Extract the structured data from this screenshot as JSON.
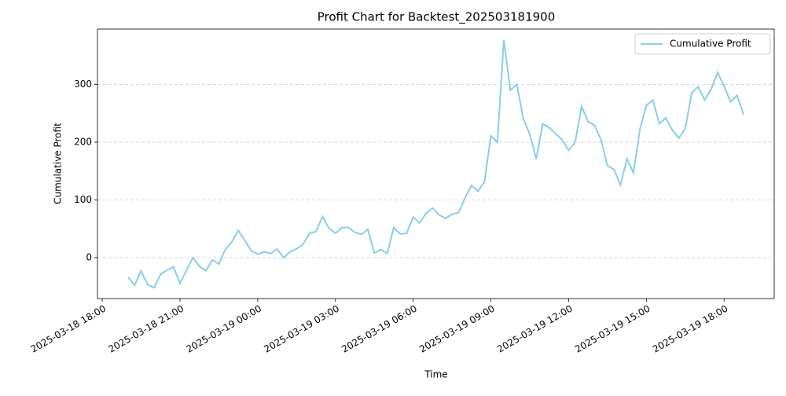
{
  "chart_data": {
    "type": "line",
    "title": "Profit Chart for Backtest_202503181900",
    "x_label": "Time",
    "y_label": "Cumulative Profit",
    "x": [
      "2025-03-18 19:00",
      "2025-03-18 19:15",
      "2025-03-18 19:30",
      "2025-03-18 19:45",
      "2025-03-18 20:00",
      "2025-03-18 20:15",
      "2025-03-18 20:30",
      "2025-03-18 20:45",
      "2025-03-18 21:00",
      "2025-03-18 21:15",
      "2025-03-18 21:30",
      "2025-03-18 21:45",
      "2025-03-18 22:00",
      "2025-03-18 22:15",
      "2025-03-18 22:30",
      "2025-03-18 22:45",
      "2025-03-18 23:00",
      "2025-03-18 23:15",
      "2025-03-18 23:30",
      "2025-03-18 23:45",
      "2025-03-19 00:00",
      "2025-03-19 00:15",
      "2025-03-19 00:30",
      "2025-03-19 00:45",
      "2025-03-19 01:00",
      "2025-03-19 01:15",
      "2025-03-19 01:30",
      "2025-03-19 01:45",
      "2025-03-19 02:00",
      "2025-03-19 02:15",
      "2025-03-19 02:30",
      "2025-03-19 02:45",
      "2025-03-19 03:00",
      "2025-03-19 03:15",
      "2025-03-19 03:30",
      "2025-03-19 03:45",
      "2025-03-19 04:00",
      "2025-03-19 04:15",
      "2025-03-19 04:30",
      "2025-03-19 04:45",
      "2025-03-19 05:00",
      "2025-03-19 05:15",
      "2025-03-19 05:30",
      "2025-03-19 05:45",
      "2025-03-19 06:00",
      "2025-03-19 06:15",
      "2025-03-19 06:30",
      "2025-03-19 06:45",
      "2025-03-19 07:00",
      "2025-03-19 07:15",
      "2025-03-19 07:30",
      "2025-03-19 07:45",
      "2025-03-19 08:00",
      "2025-03-19 08:15",
      "2025-03-19 08:30",
      "2025-03-19 08:45",
      "2025-03-19 09:00",
      "2025-03-19 09:15",
      "2025-03-19 09:30",
      "2025-03-19 09:45",
      "2025-03-19 10:00",
      "2025-03-19 10:15",
      "2025-03-19 10:30",
      "2025-03-19 10:45",
      "2025-03-19 11:00",
      "2025-03-19 11:15",
      "2025-03-19 11:30",
      "2025-03-19 11:45",
      "2025-03-19 12:00",
      "2025-03-19 12:15",
      "2025-03-19 12:30",
      "2025-03-19 12:45",
      "2025-03-19 13:00",
      "2025-03-19 13:15",
      "2025-03-19 13:30",
      "2025-03-19 13:45",
      "2025-03-19 14:00",
      "2025-03-19 14:15",
      "2025-03-19 14:30",
      "2025-03-19 14:45",
      "2025-03-19 15:00",
      "2025-03-19 15:15",
      "2025-03-19 15:30",
      "2025-03-19 15:45",
      "2025-03-19 16:00",
      "2025-03-19 16:15",
      "2025-03-19 16:30",
      "2025-03-19 16:45",
      "2025-03-19 17:00",
      "2025-03-19 17:15",
      "2025-03-19 17:30",
      "2025-03-19 17:45",
      "2025-03-19 18:00",
      "2025-03-19 18:15",
      "2025-03-19 18:30",
      "2025-03-19 18:45"
    ],
    "series": [
      {
        "name": "Cumulative Profit",
        "color": "#87ceeb",
        "values": [
          -34,
          -48,
          -23,
          -47,
          -52,
          -29,
          -22,
          -16,
          -45,
          -22,
          0,
          -15,
          -23,
          -4,
          -11,
          14,
          27,
          47,
          30,
          12,
          6,
          10,
          7,
          15,
          0,
          10,
          15,
          23,
          42,
          45,
          71,
          51,
          42,
          52,
          52,
          44,
          40,
          49,
          8,
          14,
          7,
          52,
          41,
          42,
          70,
          60,
          77,
          86,
          74,
          68,
          75,
          78,
          103,
          125,
          115,
          131,
          211,
          200,
          377,
          290,
          300,
          241,
          214,
          171,
          232,
          225,
          215,
          204,
          186,
          200,
          262,
          236,
          229,
          204,
          159,
          153,
          126,
          171,
          147,
          222,
          264,
          273,
          232,
          242,
          221,
          207,
          223,
          285,
          296,
          273,
          292,
          321,
          297,
          270,
          281,
          248
        ]
      }
    ],
    "xlim": [
      "2025-03-18 17:49",
      "2025-03-19 19:56"
    ],
    "xticks": [
      "2025-03-18 18:00",
      "2025-03-18 21:00",
      "2025-03-19 00:00",
      "2025-03-19 03:00",
      "2025-03-19 06:00",
      "2025-03-19 09:00",
      "2025-03-19 12:00",
      "2025-03-19 15:00",
      "2025-03-19 18:00"
    ],
    "ylim": [
      -71,
      396
    ],
    "yticks": [
      0,
      100,
      200,
      300
    ],
    "grid": true,
    "legend": "upper right"
  }
}
